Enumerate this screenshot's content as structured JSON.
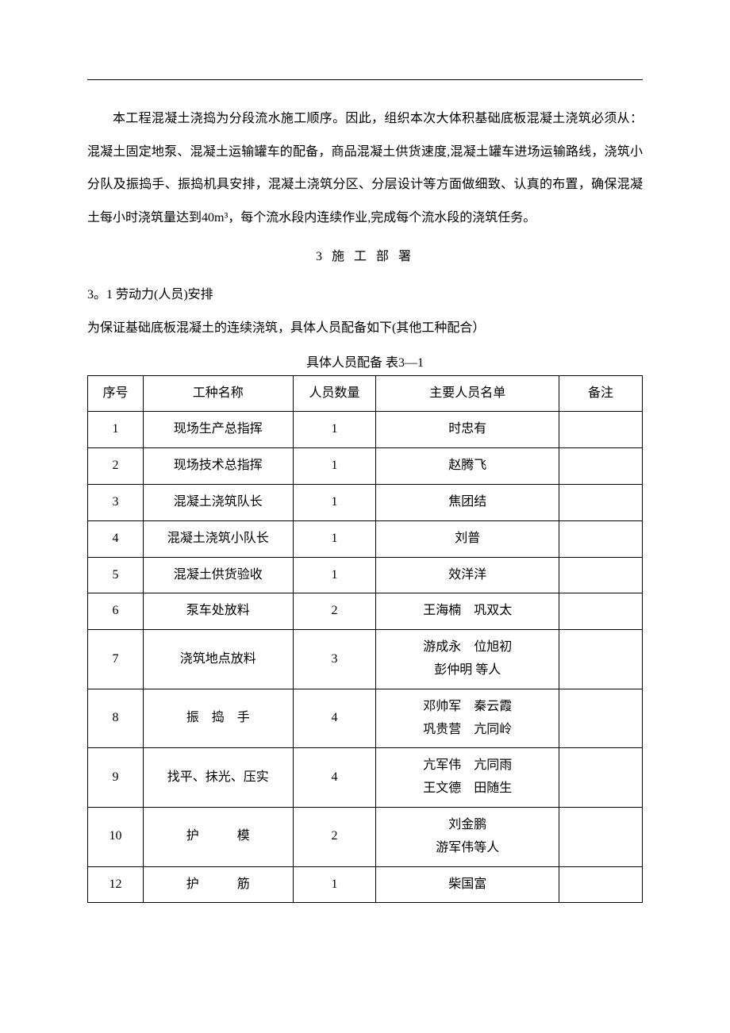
{
  "paragraph": "本工程混凝土浇捣为分段流水施工顺序。因此，组织本次大体积基础底板混凝土浇筑必须从：混凝土固定地泵、混凝土运输罐车的配备，商品混凝土供货速度,混凝土罐车进场运输路线，浇筑小分队及振捣手、振捣机具安排，混凝土浇筑分区、分层设计等方面做细致、认真的布置，确保混凝土每小时浇筑量达到40m³，每个流水段内连续作业,完成每个流水段的浇筑任务。",
  "section_heading": "3 施 工 部 署",
  "sub1": "3。1 劳动力(人员)安排",
  "sub2": "为保证基础底板混凝土的连续浇筑，具体人员配备如下(其他工种配合）",
  "table_caption": "具体人员配备 表3—1",
  "table": {
    "headers": {
      "seq": "序号",
      "role": "工种名称",
      "count": "人员数量",
      "names": "主要人员名单",
      "note": "备注"
    },
    "rows": [
      {
        "seq": "1",
        "role": "现场生产总指挥",
        "count": "1",
        "names": "时忠有",
        "note": ""
      },
      {
        "seq": "2",
        "role": "现场技术总指挥",
        "count": "1",
        "names": "赵腾飞",
        "note": ""
      },
      {
        "seq": "3",
        "role": "混凝土浇筑队长",
        "count": "1",
        "names": "焦团结",
        "note": ""
      },
      {
        "seq": "4",
        "role": "混凝土浇筑小队长",
        "count": "1",
        "names": "刘普",
        "note": ""
      },
      {
        "seq": "5",
        "role": "混凝土供货验收",
        "count": "1",
        "names": "效洋洋",
        "note": ""
      },
      {
        "seq": "6",
        "role": "泵车处放料",
        "count": "2",
        "names": "王海楠　巩双太",
        "note": ""
      },
      {
        "seq": "7",
        "role": "浇筑地点放料",
        "count": "3",
        "names": "游成永　位旭初\n彭仲明 等人",
        "note": ""
      },
      {
        "seq": "8",
        "role": "振　捣　手",
        "count": "4",
        "names": "邓帅军　秦云霞\n巩贵营　亢同岭",
        "note": ""
      },
      {
        "seq": "9",
        "role": "找平、抹光、压实",
        "count": "4",
        "names": "亢军伟　亢同雨\n王文德　田随生",
        "note": ""
      },
      {
        "seq": "10",
        "role": "护　　　模",
        "count": "2",
        "names": "刘金鹏\n游军伟等人",
        "note": ""
      },
      {
        "seq": "12",
        "role": "护　　　筋",
        "count": "1",
        "names": "柴国富",
        "note": ""
      }
    ]
  }
}
